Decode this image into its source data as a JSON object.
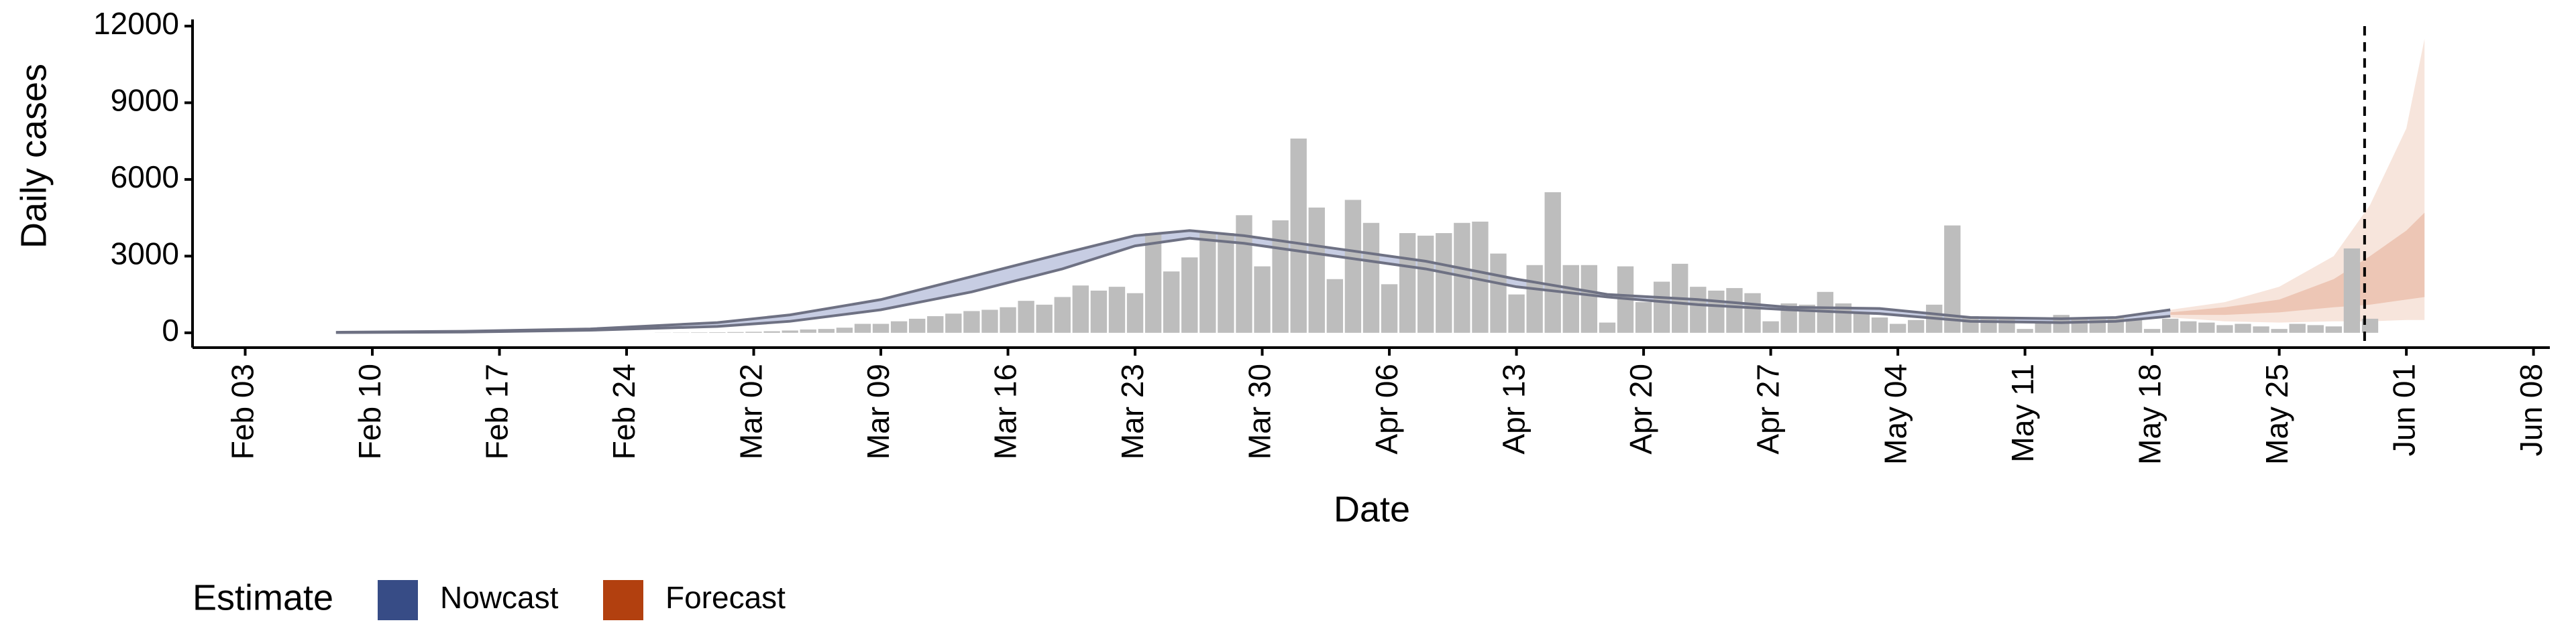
{
  "chart_data": {
    "type": "bar",
    "ylabel": "Daily cases",
    "xlabel": "Date",
    "xlim": [
      -2.9,
      126.9
    ],
    "ylim": [
      -580,
      12260
    ],
    "xticks": [
      {
        "value": 0,
        "label": "Feb 03"
      },
      {
        "value": 7,
        "label": "Feb 10"
      },
      {
        "value": 14,
        "label": "Feb 17"
      },
      {
        "value": 21,
        "label": "Feb 24"
      },
      {
        "value": 28,
        "label": "Mar 02"
      },
      {
        "value": 35,
        "label": "Mar 09"
      },
      {
        "value": 42,
        "label": "Mar 16"
      },
      {
        "value": 49,
        "label": "Mar 23"
      },
      {
        "value": 56,
        "label": "Mar 30"
      },
      {
        "value": 63,
        "label": "Apr 06"
      },
      {
        "value": 70,
        "label": "Apr 13"
      },
      {
        "value": 77,
        "label": "Apr 20"
      },
      {
        "value": 84,
        "label": "Apr 27"
      },
      {
        "value": 91,
        "label": "May 04"
      },
      {
        "value": 98,
        "label": "May 11"
      },
      {
        "value": 105,
        "label": "May 18"
      },
      {
        "value": 112,
        "label": "May 25"
      },
      {
        "value": 119,
        "label": "Jun 01"
      },
      {
        "value": 126,
        "label": "Jun 08"
      }
    ],
    "yticks": [
      0,
      3000,
      6000,
      9000,
      12000
    ],
    "bars": {
      "color": "#bdbdbd",
      "x": [
        22,
        23,
        24,
        25,
        26,
        27,
        28,
        29,
        30,
        31,
        32,
        33,
        34,
        35,
        36,
        37,
        38,
        39,
        40,
        41,
        42,
        43,
        44,
        45,
        46,
        47,
        48,
        49,
        50,
        51,
        52,
        53,
        54,
        55,
        56,
        57,
        58,
        59,
        60,
        61,
        62,
        63,
        64,
        65,
        66,
        67,
        68,
        69,
        70,
        71,
        72,
        73,
        74,
        75,
        76,
        77,
        78,
        79,
        80,
        81,
        82,
        83,
        84,
        85,
        86,
        87,
        88,
        89,
        90,
        91,
        92,
        93,
        94,
        95,
        96,
        97,
        98,
        99,
        100,
        101,
        102,
        103,
        104,
        105,
        106,
        107,
        108,
        109,
        110,
        111,
        112,
        113,
        114,
        115,
        116,
        117
      ],
      "values": [
        0,
        5,
        10,
        15,
        20,
        30,
        40,
        60,
        90,
        130,
        150,
        200,
        350,
        350,
        450,
        550,
        650,
        750,
        850,
        900,
        1000,
        1250,
        1100,
        1400,
        1850,
        1650,
        1800,
        1550,
        3900,
        2400,
        2950,
        3900,
        3900,
        4600,
        2600,
        4400,
        7600,
        4900,
        2100,
        5200,
        4300,
        1900,
        3900,
        3800,
        3900,
        4300,
        4350,
        3100,
        1500,
        2650,
        5500,
        2650,
        2650,
        400,
        2600,
        1200,
        2000,
        2700,
        1800,
        1650,
        1750,
        1550,
        450,
        1150,
        1100,
        1600,
        1150,
        750,
        600,
        350,
        500,
        1100,
        4200,
        650,
        600,
        600,
        150,
        450,
        700,
        550,
        600,
        600,
        550,
        150,
        550,
        450,
        400,
        300,
        350,
        250,
        150,
        350,
        300,
        250,
        3300,
        550
      ]
    },
    "bands": [
      {
        "color": "#e9b59c",
        "opacity": 0.35,
        "x": [
          106,
          109,
          112,
          115,
          117,
          119,
          120
        ],
        "lower": [
          600,
          450,
          400,
          450,
          450,
          500,
          500
        ],
        "upper": [
          900,
          1200,
          1800,
          3000,
          5000,
          8000,
          11500
        ]
      },
      {
        "color": "#e0a084",
        "opacity": 0.45,
        "x": [
          106,
          109,
          112,
          115,
          117,
          119,
          120
        ],
        "lower": [
          700,
          700,
          800,
          1000,
          1100,
          1300,
          1400
        ],
        "upper": [
          800,
          1000,
          1300,
          2100,
          3000,
          4000,
          4700
        ]
      },
      {
        "color": "#b9c0dc",
        "opacity": 0.8,
        "line": "#6e7183",
        "x": [
          5,
          12,
          19,
          26,
          30,
          35,
          40,
          45,
          49,
          52,
          55,
          60,
          65,
          70,
          75,
          80,
          85,
          90,
          95,
          100,
          103,
          106
        ],
        "lower": [
          10,
          30,
          100,
          250,
          450,
          900,
          1600,
          2500,
          3400,
          3700,
          3500,
          3000,
          2500,
          1800,
          1400,
          1100,
          900,
          750,
          450,
          400,
          450,
          650
        ],
        "upper": [
          20,
          60,
          150,
          400,
          700,
          1300,
          2200,
          3100,
          3800,
          4000,
          3800,
          3300,
          2800,
          2100,
          1500,
          1300,
          1000,
          950,
          600,
          550,
          600,
          900
        ]
      }
    ],
    "reference_x": 116.7,
    "legend": {
      "title": "Estimate",
      "items": [
        {
          "name": "Nowcast",
          "color": "#374c86"
        },
        {
          "name": "Forecast",
          "color": "#b2400f"
        }
      ]
    }
  }
}
